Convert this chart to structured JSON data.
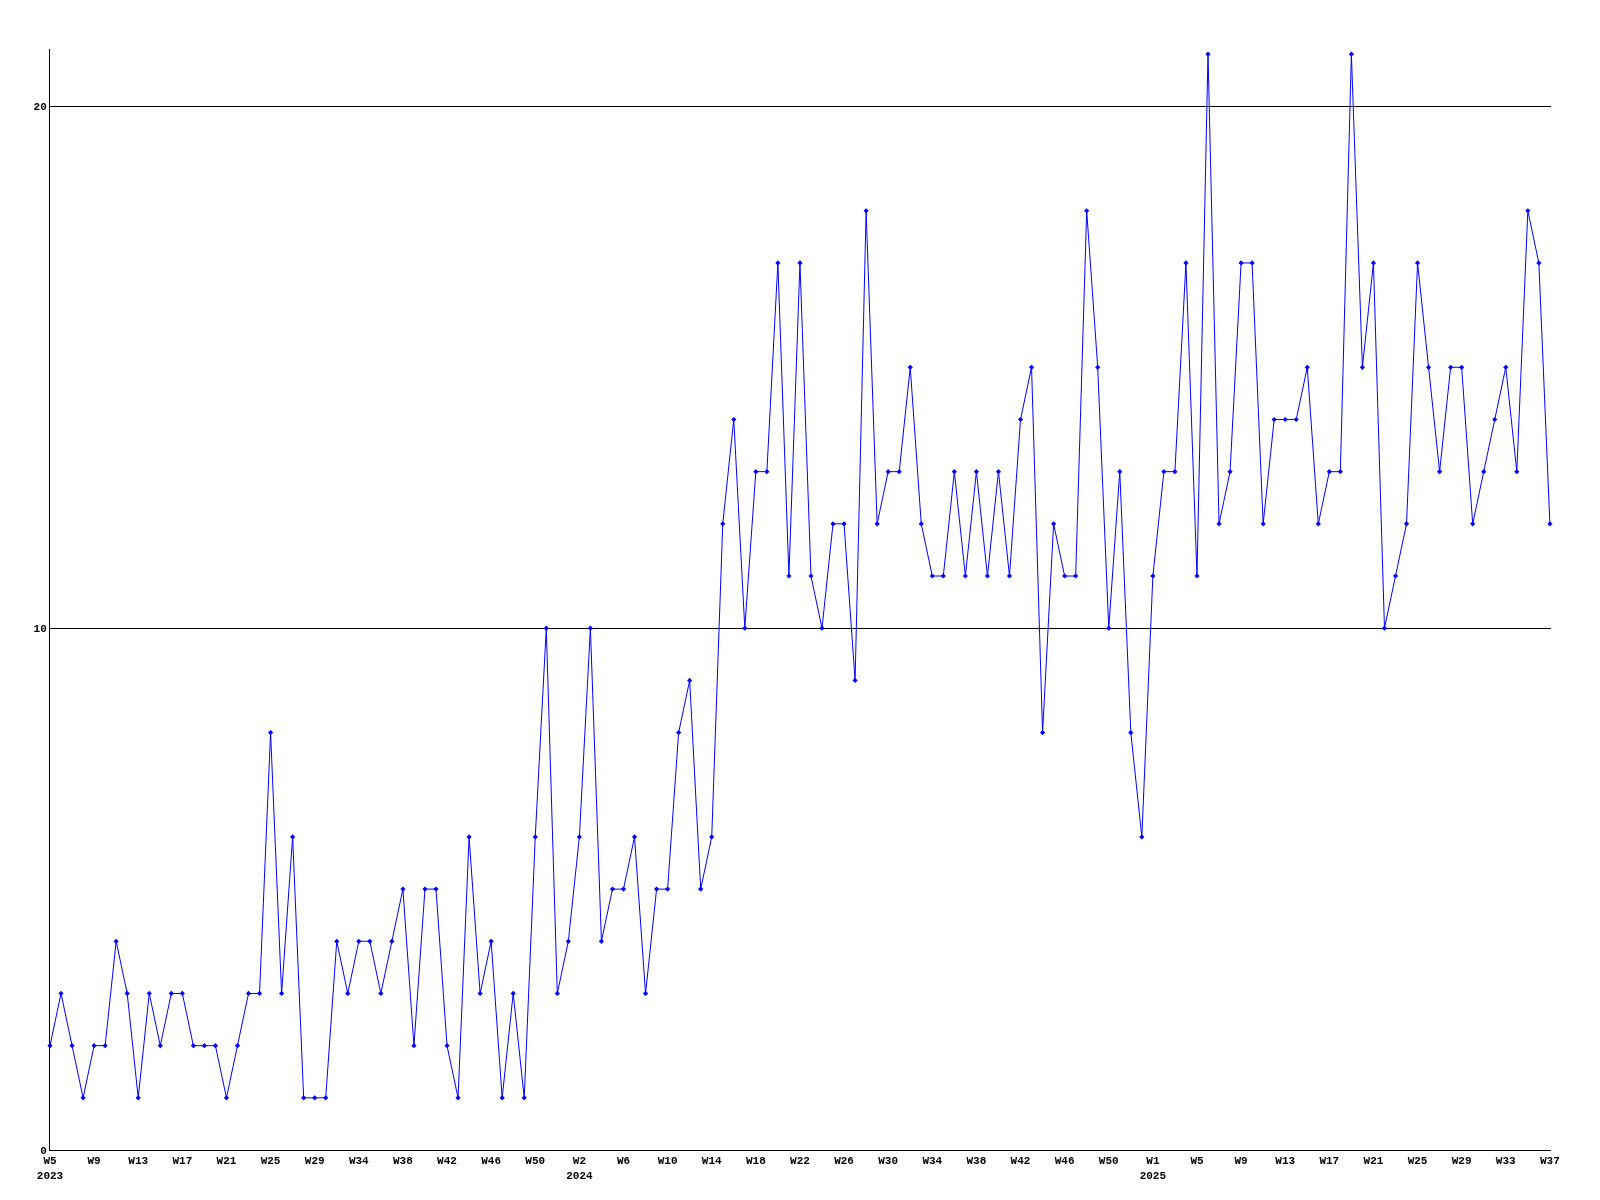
{
  "chart_data": {
    "type": "line",
    "categories": [
      "W5\n2023",
      null,
      null,
      null,
      "W9",
      null,
      null,
      null,
      "W13",
      null,
      null,
      null,
      "W17",
      null,
      null,
      null,
      "W21",
      null,
      null,
      null,
      "W25",
      null,
      null,
      null,
      "W29",
      null,
      null,
      null,
      "W34",
      null,
      null,
      null,
      "W38",
      null,
      null,
      null,
      "W42",
      null,
      null,
      null,
      "W46",
      null,
      null,
      null,
      "W50",
      null,
      null,
      null,
      "W2\n2024",
      null,
      null,
      null,
      "W6",
      null,
      null,
      null,
      "W10",
      null,
      null,
      null,
      "W14",
      null,
      null,
      null,
      "W18",
      null,
      null,
      null,
      "W22",
      null,
      null,
      null,
      "W26",
      null,
      null,
      null,
      "W30",
      null,
      null,
      null,
      "W34",
      null,
      null,
      null,
      "W38",
      null,
      null,
      null,
      "W42",
      null,
      null,
      null,
      "W46",
      null,
      null,
      null,
      "W50",
      null,
      null,
      null,
      "W1\n2025",
      null,
      null,
      null,
      "W5",
      null,
      null,
      null,
      "W9",
      null,
      null,
      null,
      "W13",
      null,
      null,
      null,
      "W17",
      null,
      null,
      null,
      "W21",
      null,
      null,
      null,
      "W25",
      null,
      null,
      null,
      "W29",
      null,
      null,
      null,
      "W33",
      null,
      null,
      null,
      "W37"
    ],
    "series": [
      {
        "color": "#0000ff",
        "values": [
          2,
          3,
          2,
          1,
          2,
          2,
          4,
          3,
          1,
          3,
          2,
          3,
          3,
          2,
          2,
          2,
          1,
          2,
          3,
          3,
          8,
          3,
          6,
          1,
          1,
          1,
          4,
          3,
          4,
          4,
          3,
          4,
          5,
          2,
          5,
          5,
          2,
          1,
          6,
          3,
          4,
          1,
          3,
          1,
          6,
          10,
          3,
          4,
          6,
          10,
          4,
          5,
          5,
          6,
          3,
          5,
          5,
          8,
          9,
          5,
          6,
          12,
          14,
          10,
          13,
          13,
          17,
          11,
          17,
          11,
          10,
          12,
          12,
          9,
          18,
          12,
          13,
          13,
          15,
          12,
          11,
          11,
          13,
          11,
          13,
          11,
          13,
          11,
          14,
          15,
          8,
          12,
          11,
          11,
          18,
          15,
          10,
          13,
          8,
          6,
          11,
          13,
          13,
          17,
          11,
          21,
          12,
          13,
          17,
          17,
          12,
          14,
          14,
          14,
          15,
          12,
          13,
          13,
          21,
          15,
          17,
          10,
          11,
          12,
          17,
          15,
          13,
          15,
          15,
          12,
          13,
          14,
          15,
          13,
          18,
          17,
          12
        ]
      }
    ],
    "ylim": [
      0,
      21.1
    ],
    "yticks": [
      0,
      10,
      20
    ],
    "grid": "y",
    "marker": "diamond",
    "line_style": "solid",
    "legend": false
  }
}
